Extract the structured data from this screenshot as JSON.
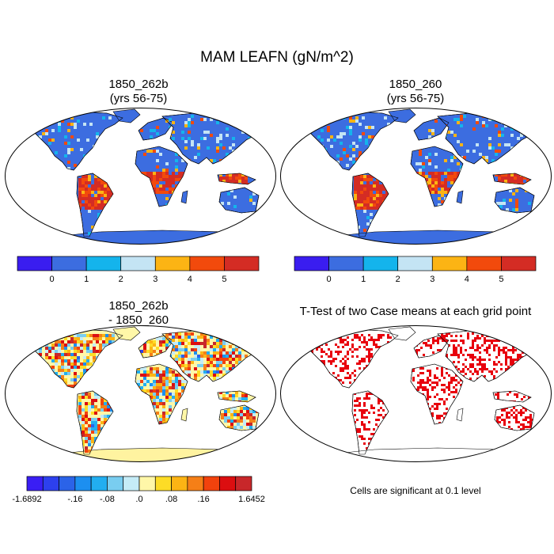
{
  "title": "MAM LEAFN (gN/m^2)",
  "panels": [
    {
      "id": "p1",
      "title_line1": "1850_262b",
      "title_line2": "(yrs 56-75)"
    },
    {
      "id": "p2",
      "title_line1": "1850_260",
      "title_line2": "(yrs 56-75)"
    },
    {
      "id": "p3",
      "title_line1": "1850_262b",
      "title_line2": "- 1850_260"
    },
    {
      "id": "p4",
      "title_line1": "T-Test of two Case means at each grid point",
      "title_line2": ""
    }
  ],
  "colorbar_abs": {
    "colors": [
      "#3a1df0",
      "#3c6de0",
      "#14b4ec",
      "#c4e4f4",
      "#fcb414",
      "#f24a0c",
      "#d42c24"
    ],
    "tick_labels": [
      "0",
      "1",
      "2",
      "3",
      "4",
      "5"
    ]
  },
  "colorbar_diff": {
    "colors": [
      "#3a1ef4",
      "#2d40ee",
      "#2b63e8",
      "#1c8ff0",
      "#22aef0",
      "#79cdf0",
      "#c5ecf7",
      "#fff7a8",
      "#fddc26",
      "#fcb414",
      "#f57f17",
      "#f2420d",
      "#dc0e10",
      "#c8272a"
    ],
    "tick_labels": [
      "-1.6892",
      "-.16",
      "-.08",
      ".0",
      ".08",
      ".16",
      "1.6452"
    ]
  },
  "note": "Cells are significant at 0.1 level",
  "colors": {
    "ocean": "#ffffff",
    "land_base_abs": "#3c6de0",
    "significance": "#e8000d",
    "antarctica_diff": "#fff3a0"
  }
}
